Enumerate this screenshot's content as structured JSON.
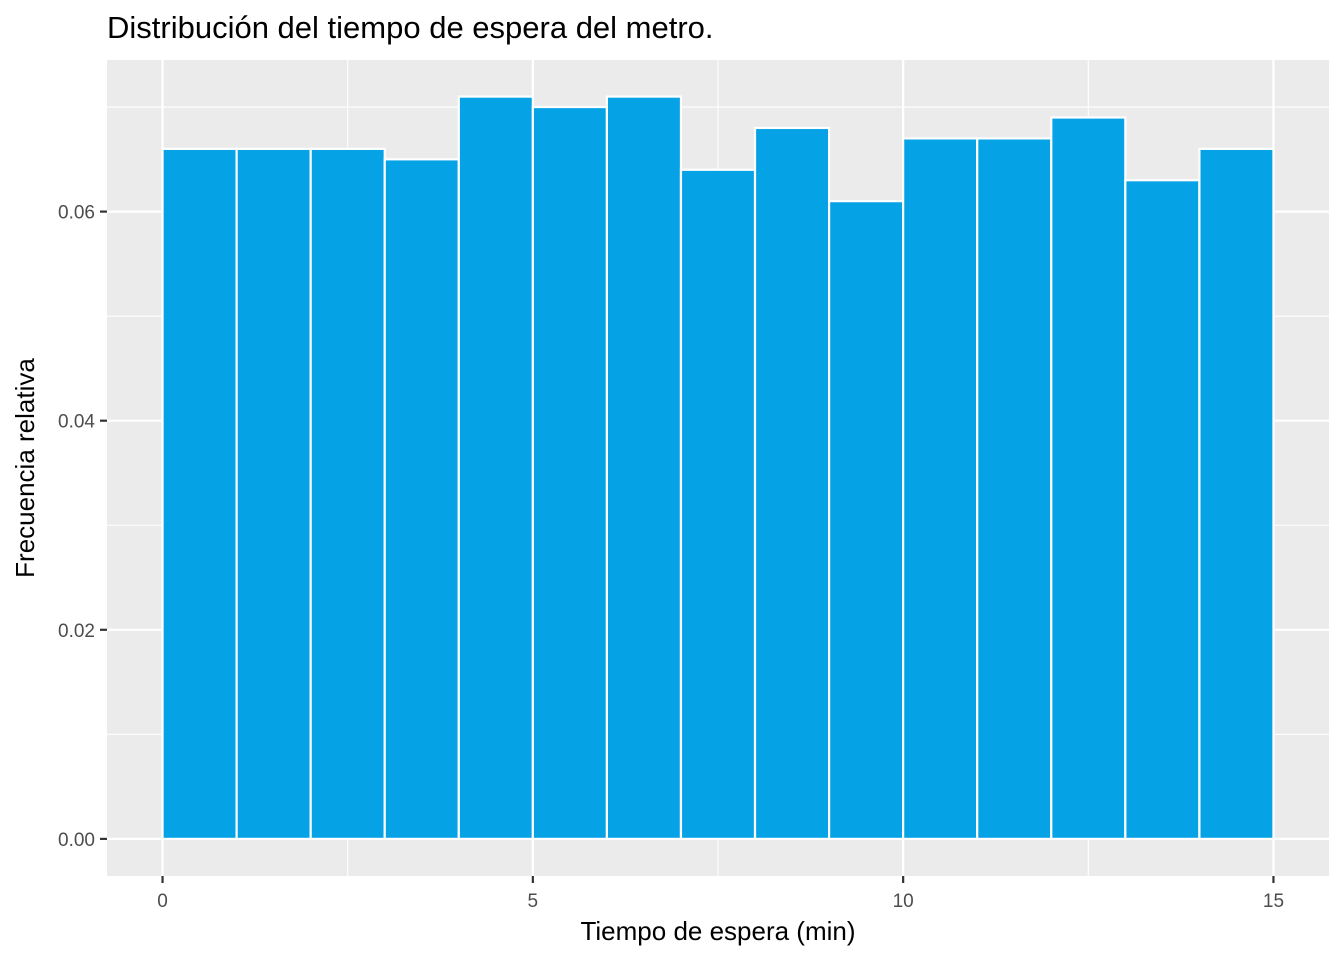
{
  "chart_data": {
    "type": "bar",
    "title": "Distribución del tiempo de espera del metro.",
    "xlabel": "Tiempo de espera (min)",
    "ylabel": "Frecuencia relativa",
    "bin_width": 1,
    "bins": [
      {
        "start": 0,
        "end": 1,
        "value": 0.066
      },
      {
        "start": 1,
        "end": 2,
        "value": 0.066
      },
      {
        "start": 2,
        "end": 3,
        "value": 0.066
      },
      {
        "start": 3,
        "end": 4,
        "value": 0.065
      },
      {
        "start": 4,
        "end": 5,
        "value": 0.071
      },
      {
        "start": 5,
        "end": 6,
        "value": 0.07
      },
      {
        "start": 6,
        "end": 7,
        "value": 0.071
      },
      {
        "start": 7,
        "end": 8,
        "value": 0.064
      },
      {
        "start": 8,
        "end": 9,
        "value": 0.068
      },
      {
        "start": 9,
        "end": 10,
        "value": 0.061
      },
      {
        "start": 10,
        "end": 11,
        "value": 0.067
      },
      {
        "start": 11,
        "end": 12,
        "value": 0.067
      },
      {
        "start": 12,
        "end": 13,
        "value": 0.069
      },
      {
        "start": 13,
        "end": 14,
        "value": 0.063
      },
      {
        "start": 14,
        "end": 15,
        "value": 0.066
      }
    ],
    "xlim": [
      -0.75,
      15.75
    ],
    "ylim": [
      -0.00355,
      0.0745
    ],
    "x_ticks": [
      {
        "value": 0,
        "label": "0"
      },
      {
        "value": 5,
        "label": "5"
      },
      {
        "value": 10,
        "label": "10"
      },
      {
        "value": 15,
        "label": "15"
      }
    ],
    "y_ticks": [
      {
        "value": 0,
        "label": "0.00"
      },
      {
        "value": 0.02,
        "label": "0.02"
      },
      {
        "value": 0.04,
        "label": "0.04"
      },
      {
        "value": 0.06,
        "label": "0.06"
      }
    ],
    "grid": true,
    "legend": "none",
    "colors": {
      "bar_fill": "#06A2E6",
      "bar_outline": "#FFFFFF",
      "panel_background": "#EBEBEB",
      "grid": "#FFFFFF"
    }
  }
}
